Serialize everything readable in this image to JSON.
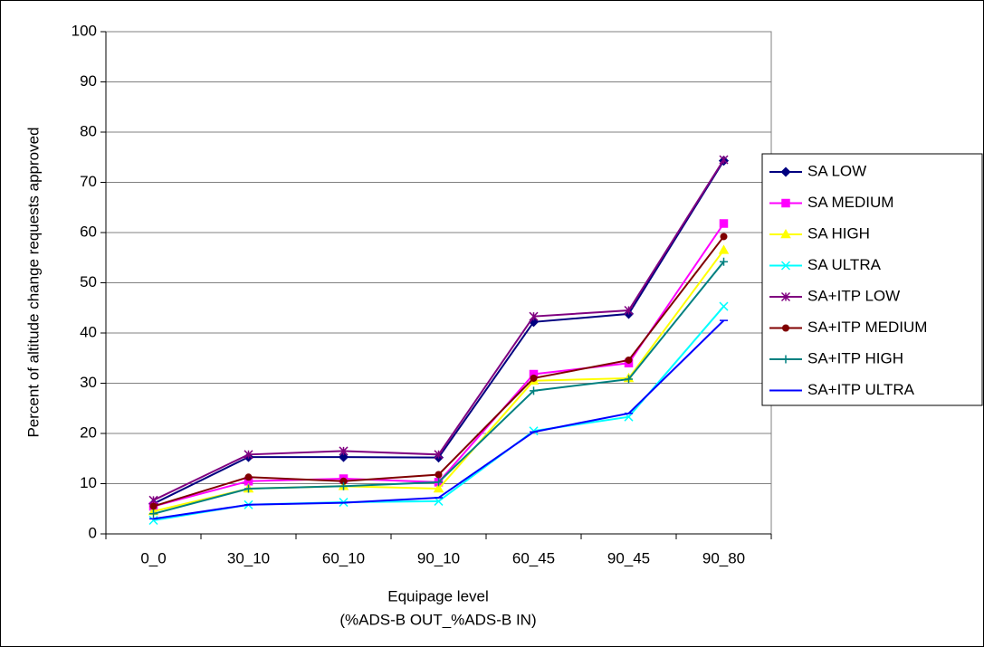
{
  "chart_data": {
    "type": "line",
    "y_label": "Percent of altitude change requests approved",
    "x_label": [
      "Equipage level",
      "(%ADS-B OUT_%ADS-B IN)"
    ],
    "categories": [
      "0_0",
      "30_10",
      "60_10",
      "90_10",
      "60_45",
      "90_45",
      "90_80"
    ],
    "ylim": [
      0,
      100
    ],
    "yticks": [
      0,
      10,
      20,
      30,
      40,
      50,
      60,
      70,
      80,
      90,
      100
    ],
    "grid": true,
    "legend": "right",
    "series": [
      {
        "name": "SA LOW",
        "color": "#000080",
        "marker": "diamond",
        "values": [
          6,
          15.3,
          15.3,
          15.2,
          42.2,
          43.8,
          74.3
        ]
      },
      {
        "name": "SA MEDIUM",
        "color": "#ff00ff",
        "marker": "square",
        "values": [
          5.5,
          10.5,
          11,
          10.3,
          31.8,
          34,
          61.8
        ]
      },
      {
        "name": "SA HIGH",
        "color": "#ffff00",
        "marker": "triangle",
        "values": [
          4.5,
          9,
          9.5,
          9,
          30.5,
          31,
          56.5
        ]
      },
      {
        "name": "SA ULTRA",
        "color": "#00ffff",
        "marker": "x",
        "values": [
          2.7,
          5.8,
          6.3,
          6.5,
          20.5,
          23.3,
          45.3
        ]
      },
      {
        "name": "SA+ITP LOW",
        "color": "#800080",
        "marker": "star",
        "values": [
          6.7,
          15.8,
          16.5,
          15.8,
          43.3,
          44.5,
          74.5
        ]
      },
      {
        "name": "SA+ITP MEDIUM",
        "color": "#800000",
        "marker": "circle",
        "values": [
          5.5,
          11.3,
          10.5,
          11.8,
          31,
          34.6,
          59.2
        ]
      },
      {
        "name": "SA+ITP HIGH",
        "color": "#008080",
        "marker": "plus",
        "values": [
          4,
          9,
          9.5,
          10.3,
          28.5,
          30.8,
          54.2
        ]
      },
      {
        "name": "SA+ITP ULTRA",
        "color": "#0000ff",
        "marker": "dash",
        "values": [
          3,
          5.8,
          6.2,
          7.2,
          20.3,
          24,
          42.5
        ]
      }
    ]
  }
}
